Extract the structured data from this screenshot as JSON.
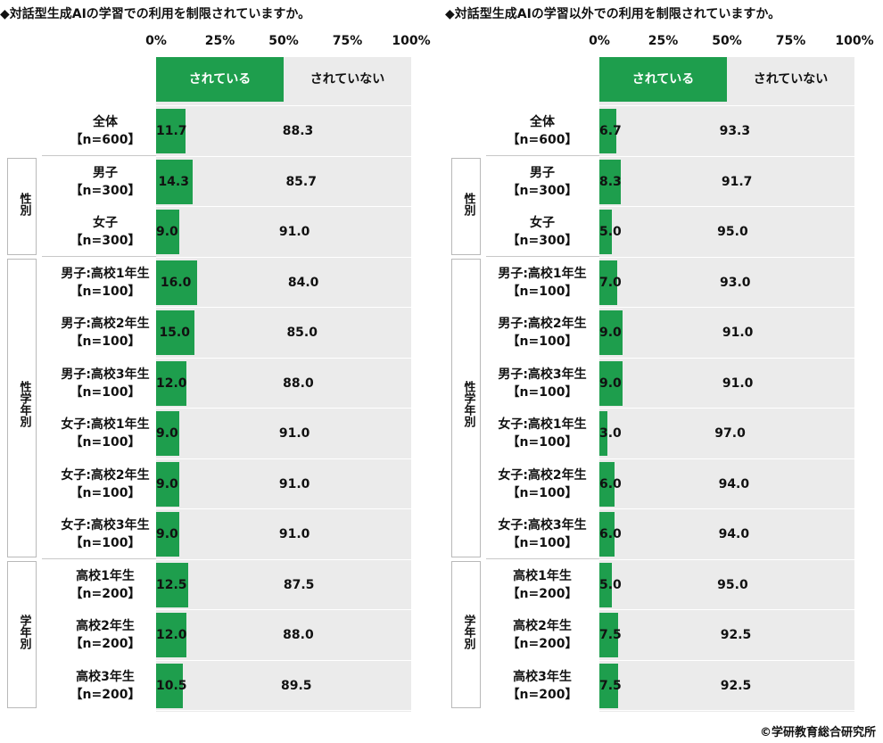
{
  "colors": {
    "green": "#1e9e4d",
    "grey": "#ebebeb"
  },
  "credit": "©学研教育総合研究所",
  "chart_data": [
    {
      "type": "bar",
      "title": "◆対話型生成AIの学習での利用を制限されていますか。",
      "x_ticks": [
        "0%",
        "25%",
        "50%",
        "75%",
        "100%"
      ],
      "xlim": [
        0,
        100
      ],
      "legend": [
        "されている",
        "されていない"
      ],
      "groups": [
        {
          "label": "",
          "rows": [
            0
          ]
        },
        {
          "label": "性別",
          "rows": [
            1,
            2
          ]
        },
        {
          "label": "性学年別",
          "rows": [
            3,
            4,
            5,
            6,
            7,
            8
          ]
        },
        {
          "label": "学年別",
          "rows": [
            9,
            10,
            11
          ]
        }
      ],
      "categories": [
        [
          "全体",
          "【n=600】"
        ],
        [
          "男子",
          "【n=300】"
        ],
        [
          "女子",
          "【n=300】"
        ],
        [
          "男子:高校1年生",
          "【n=100】"
        ],
        [
          "男子:高校2年生",
          "【n=100】"
        ],
        [
          "男子:高校3年生",
          "【n=100】"
        ],
        [
          "女子:高校1年生",
          "【n=100】"
        ],
        [
          "女子:高校2年生",
          "【n=100】"
        ],
        [
          "女子:高校3年生",
          "【n=100】"
        ],
        [
          "高校1年生",
          "【n=200】"
        ],
        [
          "高校2年生",
          "【n=200】"
        ],
        [
          "高校3年生",
          "【n=200】"
        ]
      ],
      "series": [
        {
          "name": "されている",
          "values": [
            "11.7",
            "14.3",
            "9.0",
            "16.0",
            "15.0",
            "12.0",
            "9.0",
            "9.0",
            "9.0",
            "12.5",
            "12.0",
            "10.5"
          ]
        },
        {
          "name": "されていない",
          "values": [
            "88.3",
            "85.7",
            "91.0",
            "84.0",
            "85.0",
            "88.0",
            "91.0",
            "91.0",
            "91.0",
            "87.5",
            "88.0",
            "89.5"
          ]
        }
      ]
    },
    {
      "type": "bar",
      "title": "◆対話型生成AIの学習以外での利用を制限されていますか。",
      "x_ticks": [
        "0%",
        "25%",
        "50%",
        "75%",
        "100%"
      ],
      "xlim": [
        0,
        100
      ],
      "legend": [
        "されている",
        "されていない"
      ],
      "groups": [
        {
          "label": "",
          "rows": [
            0
          ]
        },
        {
          "label": "性別",
          "rows": [
            1,
            2
          ]
        },
        {
          "label": "性学年別",
          "rows": [
            3,
            4,
            5,
            6,
            7,
            8
          ]
        },
        {
          "label": "学年別",
          "rows": [
            9,
            10,
            11
          ]
        }
      ],
      "categories": [
        [
          "全体",
          "【n=600】"
        ],
        [
          "男子",
          "【n=300】"
        ],
        [
          "女子",
          "【n=300】"
        ],
        [
          "男子:高校1年生",
          "【n=100】"
        ],
        [
          "男子:高校2年生",
          "【n=100】"
        ],
        [
          "男子:高校3年生",
          "【n=100】"
        ],
        [
          "女子:高校1年生",
          "【n=100】"
        ],
        [
          "女子:高校2年生",
          "【n=100】"
        ],
        [
          "女子:高校3年生",
          "【n=100】"
        ],
        [
          "高校1年生",
          "【n=200】"
        ],
        [
          "高校2年生",
          "【n=200】"
        ],
        [
          "高校3年生",
          "【n=200】"
        ]
      ],
      "series": [
        {
          "name": "されている",
          "values": [
            "6.7",
            "8.3",
            "5.0",
            "7.0",
            "9.0",
            "9.0",
            "3.0",
            "6.0",
            "6.0",
            "5.0",
            "7.5",
            "7.5"
          ]
        },
        {
          "name": "されていない",
          "values": [
            "93.3",
            "91.7",
            "95.0",
            "93.0",
            "91.0",
            "91.0",
            "97.0",
            "94.0",
            "94.0",
            "95.0",
            "92.5",
            "92.5"
          ]
        }
      ]
    }
  ]
}
